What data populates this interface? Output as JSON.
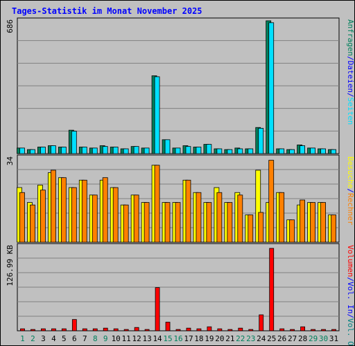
{
  "title": "Tages-Statistik im Monat November 2025",
  "chart_data": [
    {
      "type": "bar",
      "panel": "top",
      "scale_label": "686",
      "ylim": [
        0,
        686
      ],
      "right_label_parts": [
        {
          "text": "Anfragen",
          "color": "#00805c"
        },
        {
          "text": "/",
          "color": "#0000ff"
        },
        {
          "text": "Dateien",
          "color": "#0000ff"
        },
        {
          "text": "/",
          "color": "#0000ff"
        },
        {
          "text": "Seiten",
          "color": "#00e0ff"
        }
      ],
      "categories": [
        "1",
        "2",
        "3",
        "4",
        "5",
        "6",
        "7",
        "8",
        "9",
        "10",
        "11",
        "12",
        "13",
        "14",
        "15",
        "16",
        "17",
        "18",
        "19",
        "20",
        "21",
        "22",
        "23",
        "24",
        "25",
        "26",
        "27",
        "28",
        "29",
        "30",
        "31"
      ],
      "series": [
        {
          "name": "Anfragen",
          "color": "#00805c",
          "values": [
            29,
            21,
            34,
            41,
            34,
            121,
            34,
            29,
            41,
            34,
            25,
            37,
            29,
            402,
            72,
            29,
            41,
            34,
            48,
            25,
            21,
            29,
            25,
            135,
            686,
            25,
            21,
            45,
            29,
            25,
            21
          ]
        },
        {
          "name": "Seiten",
          "color": "#00e0ff",
          "values": [
            29,
            21,
            34,
            41,
            34,
            116,
            34,
            29,
            37,
            34,
            25,
            37,
            29,
            397,
            72,
            29,
            37,
            34,
            48,
            25,
            21,
            25,
            25,
            131,
            676,
            25,
            21,
            41,
            29,
            25,
            21
          ]
        }
      ]
    },
    {
      "type": "bar",
      "panel": "middle",
      "scale_label": "34",
      "ylim": [
        0,
        34
      ],
      "right_label_parts": [
        {
          "text": "Besuche",
          "color": "#ffff00"
        },
        {
          "text": "/",
          "color": "#0000ff"
        },
        {
          "text": "Rechner",
          "color": "#ff8000"
        }
      ],
      "categories": [
        "1",
        "2",
        "3",
        "4",
        "5",
        "6",
        "7",
        "8",
        "9",
        "10",
        "11",
        "12",
        "13",
        "14",
        "15",
        "16",
        "17",
        "18",
        "19",
        "20",
        "21",
        "22",
        "23",
        "24",
        "25",
        "26",
        "27",
        "28",
        "29",
        "30",
        "31"
      ],
      "series": [
        {
          "name": "Besuche",
          "color": "#ffff00",
          "values": [
            22,
            16,
            23,
            28,
            26,
            22,
            25,
            19,
            25,
            22,
            15,
            19,
            16,
            31,
            16,
            16,
            25,
            20,
            16,
            22,
            16,
            20,
            11,
            29,
            16,
            20,
            9,
            15,
            16,
            16,
            11
          ]
        },
        {
          "name": "Rechner",
          "color": "#ff8000",
          "values": [
            20,
            15,
            21,
            29,
            26,
            22,
            25,
            19,
            26,
            22,
            15,
            19,
            16,
            31,
            16,
            16,
            25,
            20,
            16,
            20,
            16,
            19,
            11,
            12,
            33,
            20,
            9,
            17,
            16,
            16,
            11
          ]
        }
      ]
    },
    {
      "type": "bar",
      "panel": "bottom",
      "scale_label": "126.99 KB",
      "ylim": [
        0,
        126.99
      ],
      "right_label_parts": [
        {
          "text": "Volumen",
          "color": "#ff0000"
        },
        {
          "text": "/",
          "color": "#0000ff"
        },
        {
          "text": "Vol. In",
          "color": "#0000ff"
        },
        {
          "text": "/",
          "color": "#0000ff"
        },
        {
          "text": "Vol. Out",
          "color": "#008080"
        }
      ],
      "categories": [
        "1",
        "2",
        "3",
        "4",
        "5",
        "6",
        "7",
        "8",
        "9",
        "10",
        "11",
        "12",
        "13",
        "14",
        "15",
        "16",
        "17",
        "18",
        "19",
        "20",
        "21",
        "22",
        "23",
        "24",
        "25",
        "26",
        "27",
        "28",
        "29",
        "30",
        "31"
      ],
      "series": [
        {
          "name": "Volumen",
          "color": "#ff0000",
          "values": [
            3,
            2,
            3,
            3,
            3,
            17,
            3,
            3,
            4,
            3,
            2,
            5,
            2,
            65,
            13,
            2,
            4,
            3,
            6,
            3,
            2,
            4,
            2,
            24,
            124,
            3,
            2,
            6,
            2,
            2,
            2
          ]
        }
      ],
      "weekend_days": [
        1,
        2,
        8,
        9,
        15,
        16,
        22,
        23,
        29,
        30
      ],
      "weekday_color": "#000000",
      "weekend_color": "#00805c"
    }
  ]
}
